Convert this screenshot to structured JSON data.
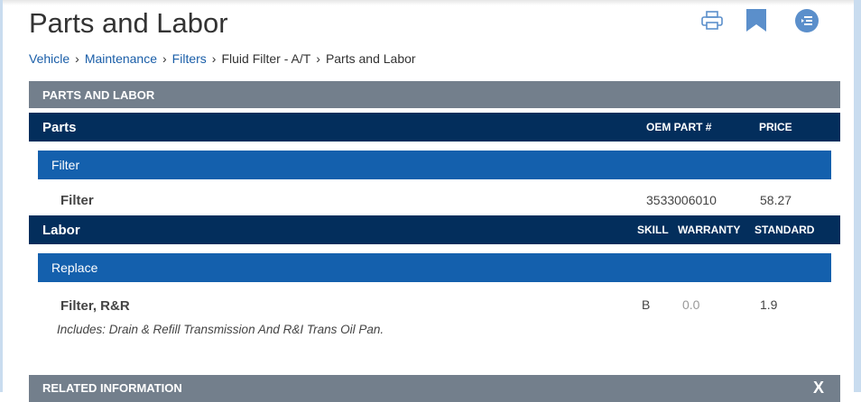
{
  "title": "Parts and Labor",
  "breadcrumb": [
    "Vehicle",
    "Maintenance",
    "Filters",
    "Fluid Filter - A/T",
    "Parts and Labor"
  ],
  "section_header": "PARTS AND LABOR",
  "parts": {
    "label": "Parts",
    "col_oem": "OEM PART #",
    "col_price": "PRICE",
    "group": "Filter",
    "item": {
      "name": "Filter",
      "oem": "3533006010",
      "price": "58.27"
    }
  },
  "labor": {
    "label": "Labor",
    "col_skill": "SKILL",
    "col_warranty": "WARRANTY",
    "col_standard": "STANDARD",
    "group": "Replace",
    "item": {
      "name": "Filter, R&R",
      "skill": "B",
      "warranty": "0.0",
      "standard": "1.9",
      "note": "Includes: Drain & Refill Transmission And R&I Trans Oil Pan."
    }
  },
  "related": {
    "label": "RELATED INFORMATION",
    "close": "X"
  },
  "icons": [
    "print-icon",
    "bookmark-icon",
    "toc-icon"
  ],
  "colors": {
    "navy": "#032e5c",
    "blue": "#1460ad",
    "gray": "#737f8c",
    "link": "#1a5ea8",
    "icon": "#5b8fcb"
  }
}
